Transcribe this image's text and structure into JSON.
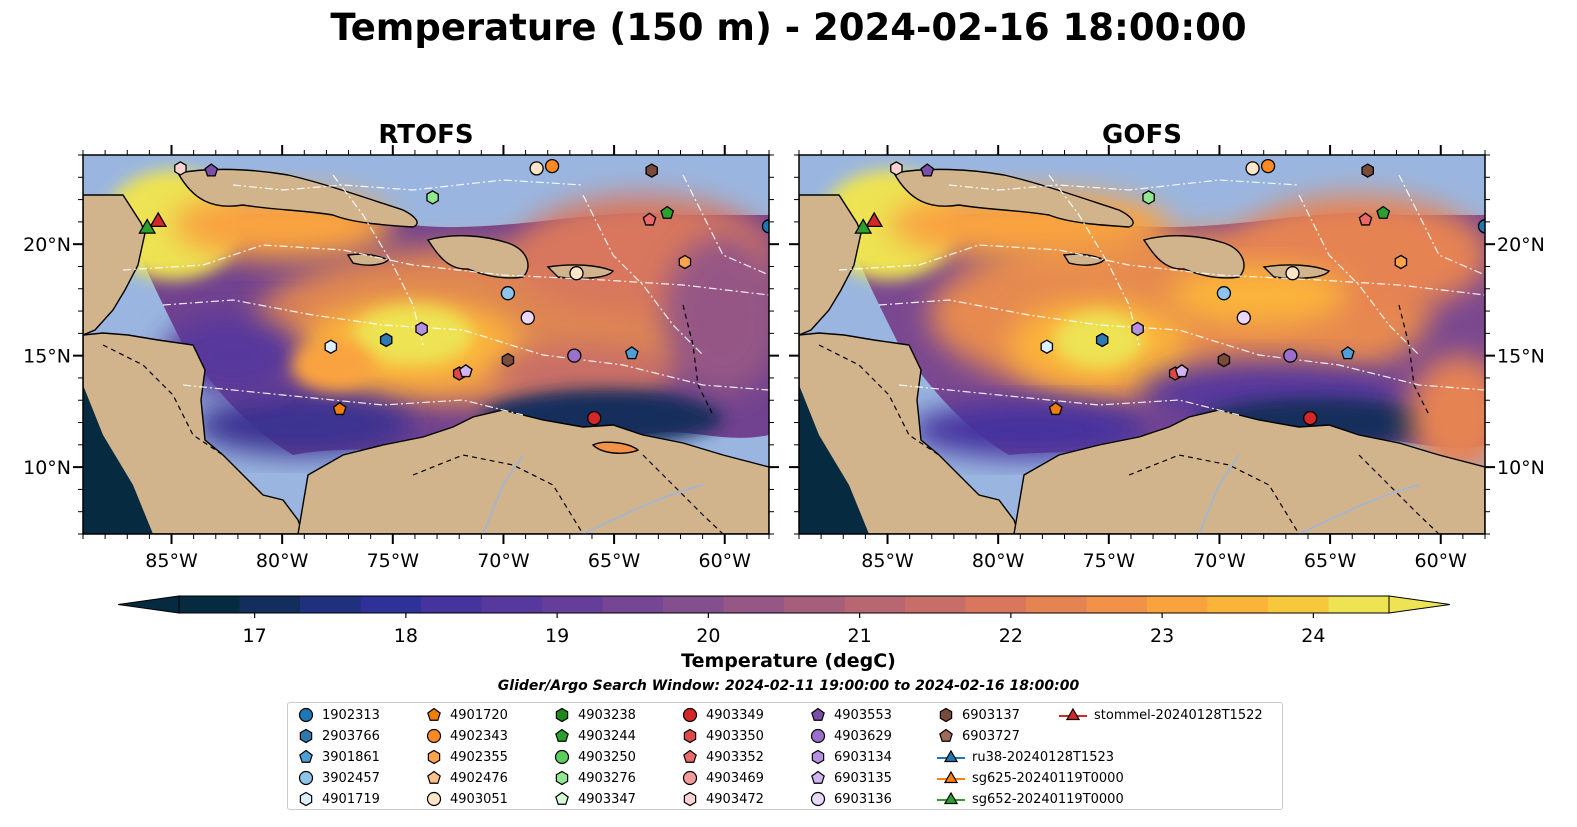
{
  "title": "Temperature (150 m) - 2024-02-16 18:00:00",
  "panels": [
    {
      "title": "RTOFS"
    },
    {
      "title": "GOFS"
    }
  ],
  "axes": {
    "lon_ticks": [
      "85°W",
      "80°W",
      "75°W",
      "70°W",
      "65°W",
      "60°W"
    ],
    "lat_ticks": [
      "20°N",
      "15°N",
      "10°N"
    ],
    "lon_range": [
      -89,
      -58
    ],
    "lat_range": [
      7,
      24
    ]
  },
  "colorbar": {
    "label": "Temperature (degC)",
    "range": [
      16.5,
      24.5
    ],
    "extend": "both",
    "ticks": [
      "17",
      "18",
      "19",
      "20",
      "21",
      "22",
      "23",
      "24"
    ],
    "colors": [
      "#062a3f",
      "#132d5c",
      "#1f307f",
      "#2e319a",
      "#45339e",
      "#57389c",
      "#653e99",
      "#744694",
      "#844f8e",
      "#955785",
      "#a65f7b",
      "#b86672",
      "#c86e68",
      "#d8775d",
      "#e68352",
      "#f29248",
      "#f9a33f",
      "#fbb43a",
      "#f6c83b",
      "#ede353"
    ]
  },
  "search_window": "Glider/Argo Search Window: 2024-02-11 19:00:00 to 2024-02-16 18:00:00",
  "legend": [
    {
      "label": "1902313",
      "marker": "circle",
      "color": "#1f77b4"
    },
    {
      "label": "2903766",
      "marker": "hexagon",
      "color": "#2e7ab0"
    },
    {
      "label": "3901861",
      "marker": "pentagon",
      "color": "#4f9fd6"
    },
    {
      "label": "3902457",
      "marker": "circle",
      "color": "#8fc4ea"
    },
    {
      "label": "4901719",
      "marker": "hexagon",
      "color": "#dcefff"
    },
    {
      "label": "4901720",
      "marker": "pentagon",
      "color": "#f07d0c"
    },
    {
      "label": "4902343",
      "marker": "circle",
      "color": "#ff8a24"
    },
    {
      "label": "4902355",
      "marker": "hexagon",
      "color": "#ffa44d"
    },
    {
      "label": "4902476",
      "marker": "pentagon",
      "color": "#ffc38a"
    },
    {
      "label": "4903051",
      "marker": "circle",
      "color": "#ffe6c9"
    },
    {
      "label": "4903238",
      "marker": "hexagon",
      "color": "#1b8a1b"
    },
    {
      "label": "4903244",
      "marker": "pentagon",
      "color": "#2ca02c"
    },
    {
      "label": "4903250",
      "marker": "circle",
      "color": "#5ccc5c"
    },
    {
      "label": "4903276",
      "marker": "hexagon",
      "color": "#90e890"
    },
    {
      "label": "4903347",
      "marker": "pentagon",
      "color": "#d5fcd5"
    },
    {
      "label": "4903349",
      "marker": "circle",
      "color": "#d62728"
    },
    {
      "label": "4903350",
      "marker": "hexagon",
      "color": "#e04848"
    },
    {
      "label": "4903352",
      "marker": "pentagon",
      "color": "#ea6a6a"
    },
    {
      "label": "4903469",
      "marker": "circle",
      "color": "#f49b9b"
    },
    {
      "label": "4903472",
      "marker": "hexagon",
      "color": "#fdd2d2"
    },
    {
      "label": "4903553",
      "marker": "pentagon",
      "color": "#7b4ea8"
    },
    {
      "label": "4903629",
      "marker": "circle",
      "color": "#9b6fcc"
    },
    {
      "label": "6903134",
      "marker": "hexagon",
      "color": "#b690e0"
    },
    {
      "label": "6903135",
      "marker": "pentagon",
      "color": "#d2b4f0"
    },
    {
      "label": "6903136",
      "marker": "circle",
      "color": "#ead8fb"
    },
    {
      "label": "6903137",
      "marker": "hexagon",
      "color": "#7a4a3a"
    },
    {
      "label": "6903727",
      "marker": "pentagon",
      "color": "#a06a5a"
    },
    {
      "label": "ru38-20240128T1523",
      "marker": "triangle-line",
      "color": "#1f77b4"
    },
    {
      "label": "sg625-20240119T0000",
      "marker": "triangle-line",
      "color": "#ff7f0e"
    },
    {
      "label": "sg652-20240119T0000",
      "marker": "triangle-line",
      "color": "#2ca02c"
    },
    {
      "label": "stommel-20240128T1522",
      "marker": "triangle-line",
      "color": "#d62728"
    }
  ],
  "platform_positions": [
    {
      "id": "4903051",
      "lon": -68.5,
      "lat": 23.4,
      "marker": "circle",
      "color": "#ffe6c9"
    },
    {
      "id": "4903472",
      "lon": -84.6,
      "lat": 23.4,
      "marker": "hexagon",
      "color": "#fdd2d2"
    },
    {
      "id": "4903553",
      "lon": -83.2,
      "lat": 23.3,
      "marker": "pentagon",
      "color": "#7b4ea8"
    },
    {
      "id": "4902343",
      "lon": -67.8,
      "lat": 23.5,
      "marker": "circle",
      "color": "#ff8a24"
    },
    {
      "id": "6903137",
      "lon": -63.3,
      "lat": 23.3,
      "marker": "hexagon",
      "color": "#7a4a3a"
    },
    {
      "id": "4903276",
      "lon": -73.2,
      "lat": 22.1,
      "marker": "hexagon",
      "color": "#90e890"
    },
    {
      "id": "4903352",
      "lon": -63.4,
      "lat": 21.1,
      "marker": "pentagon",
      "color": "#ea6a6a"
    },
    {
      "id": "4903244",
      "lon": -62.6,
      "lat": 21.4,
      "marker": "pentagon",
      "color": "#2ca02c"
    },
    {
      "id": "1902313",
      "lon": -58.0,
      "lat": 20.8,
      "marker": "circle",
      "color": "#1f77b4"
    },
    {
      "id": "4902355",
      "lon": -61.8,
      "lat": 19.2,
      "marker": "hexagon",
      "color": "#ffa44d"
    },
    {
      "id": "4903051b",
      "lon": -66.7,
      "lat": 18.7,
      "marker": "circle",
      "color": "#ffe6c9"
    },
    {
      "id": "3902457",
      "lon": -69.8,
      "lat": 17.8,
      "marker": "circle",
      "color": "#8fc4ea"
    },
    {
      "id": "6903136",
      "lon": -68.9,
      "lat": 16.7,
      "marker": "circle",
      "color": "#ead8fb"
    },
    {
      "id": "6903134",
      "lon": -73.7,
      "lat": 16.2,
      "marker": "hexagon",
      "color": "#b690e0"
    },
    {
      "id": "2903766",
      "lon": -75.3,
      "lat": 15.7,
      "marker": "hexagon",
      "color": "#2e7ab0"
    },
    {
      "id": "4901719",
      "lon": -77.8,
      "lat": 15.4,
      "marker": "hexagon",
      "color": "#dcefff"
    },
    {
      "id": "4903629",
      "lon": -66.8,
      "lat": 15.0,
      "marker": "circle",
      "color": "#9b6fcc"
    },
    {
      "id": "3901861",
      "lon": -64.2,
      "lat": 15.1,
      "marker": "pentagon",
      "color": "#4f9fd6"
    },
    {
      "id": "6903137b",
      "lon": -69.8,
      "lat": 14.8,
      "marker": "hexagon",
      "color": "#7a4a3a"
    },
    {
      "id": "4903350",
      "lon": -72.0,
      "lat": 14.2,
      "marker": "hexagon",
      "color": "#e04848"
    },
    {
      "id": "6903135",
      "lon": -71.7,
      "lat": 14.3,
      "marker": "pentagon",
      "color": "#d2b4f0"
    },
    {
      "id": "4901720",
      "lon": -77.4,
      "lat": 12.6,
      "marker": "pentagon",
      "color": "#f07d0c"
    },
    {
      "id": "4903349",
      "lon": -65.9,
      "lat": 12.2,
      "marker": "circle",
      "color": "#d62728"
    },
    {
      "id": "stommel-20240128T1522",
      "lon": -85.6,
      "lat": 21.0,
      "marker": "triangle",
      "color": "#d62728"
    },
    {
      "id": "sg652-20240119T0000",
      "lon": -86.1,
      "lat": 20.7,
      "marker": "triangle",
      "color": "#2ca02c"
    }
  ]
}
